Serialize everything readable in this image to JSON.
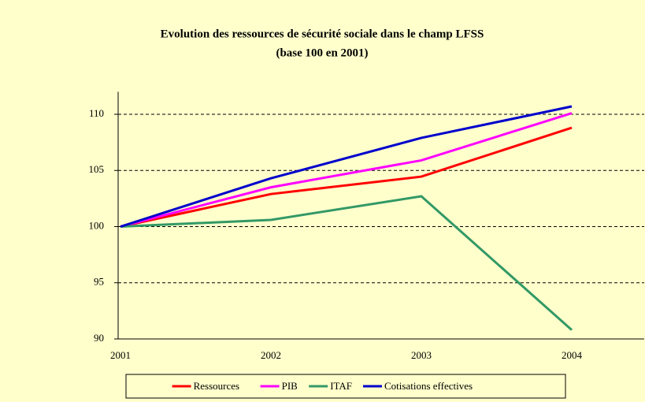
{
  "chart_data": {
    "type": "line",
    "title": "Evolution des ressources de sécurité sociale dans le champ LFSS",
    "subtitle": "(base 100 en 2001)",
    "categories": [
      "2001",
      "2002",
      "2003",
      "2004"
    ],
    "series": [
      {
        "name": "Ressources",
        "color": "#ff0000",
        "values": [
          100,
          102.9,
          104.45,
          108.8
        ]
      },
      {
        "name": "PIB",
        "color": "#ff00ff",
        "values": [
          100,
          103.5,
          105.9,
          110.1
        ]
      },
      {
        "name": "ITAF",
        "color": "#339966",
        "values": [
          100,
          100.6,
          102.7,
          90.8
        ]
      },
      {
        "name": "Cotisations effectives",
        "color": "#0000cc",
        "values": [
          100,
          104.3,
          107.9,
          110.7
        ]
      }
    ],
    "ylim": [
      90,
      112
    ],
    "yticks": [
      90,
      95,
      100,
      105,
      110
    ],
    "grid": true,
    "legend": "bottom"
  }
}
